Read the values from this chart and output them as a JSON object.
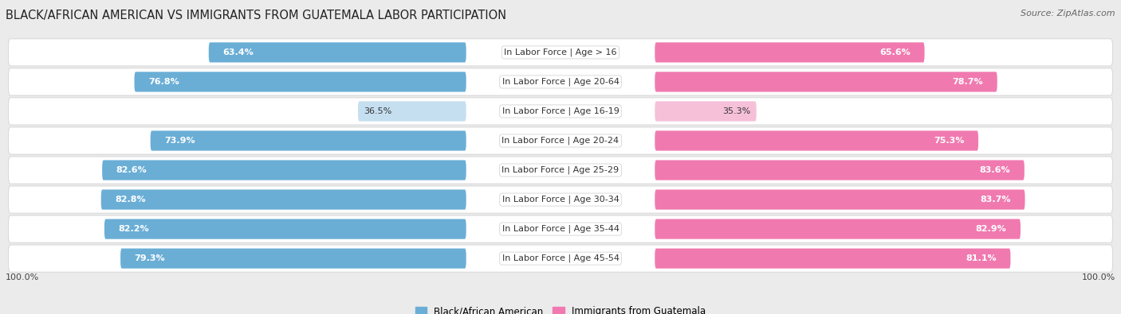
{
  "title": "BLACK/AFRICAN AMERICAN VS IMMIGRANTS FROM GUATEMALA LABOR PARTICIPATION",
  "source": "Source: ZipAtlas.com",
  "categories": [
    "In Labor Force | Age > 16",
    "In Labor Force | Age 20-64",
    "In Labor Force | Age 16-19",
    "In Labor Force | Age 20-24",
    "In Labor Force | Age 25-29",
    "In Labor Force | Age 30-34",
    "In Labor Force | Age 35-44",
    "In Labor Force | Age 45-54"
  ],
  "black_values": [
    63.4,
    76.8,
    36.5,
    73.9,
    82.6,
    82.8,
    82.2,
    79.3
  ],
  "immigrant_values": [
    65.6,
    78.7,
    35.3,
    75.3,
    83.6,
    83.7,
    82.9,
    81.1
  ],
  "black_color_strong": "#6aaed6",
  "black_color_light": "#c5dff0",
  "immigrant_color_strong": "#f07ab0",
  "immigrant_color_light": "#f5c0d8",
  "max_value": 100.0,
  "bar_height": 0.68,
  "bg_color": "#ebebeb",
  "row_bg_color": "#ffffff",
  "label_fontsize": 8.0,
  "value_fontsize": 8.0,
  "title_fontsize": 10.5,
  "legend_label_black": "Black/African American",
  "legend_label_immigrant": "Immigrants from Guatemala"
}
